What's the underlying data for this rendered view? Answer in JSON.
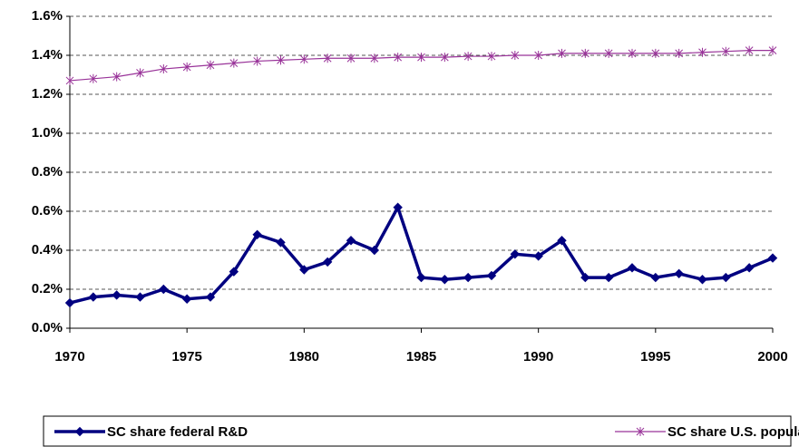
{
  "chart_data": {
    "type": "line",
    "x": [
      1970,
      1971,
      1972,
      1973,
      1974,
      1975,
      1976,
      1977,
      1978,
      1979,
      1980,
      1981,
      1982,
      1983,
      1984,
      1985,
      1986,
      1987,
      1988,
      1989,
      1990,
      1991,
      1992,
      1993,
      1994,
      1995,
      1996,
      1997,
      1998,
      1999,
      2000
    ],
    "series": [
      {
        "name": "SC share federal R&D",
        "color": "#000080",
        "marker": "diamond",
        "values": [
          0.13,
          0.16,
          0.17,
          0.16,
          0.2,
          0.15,
          0.16,
          0.29,
          0.48,
          0.44,
          0.3,
          0.34,
          0.45,
          0.4,
          0.62,
          0.26,
          0.25,
          0.26,
          0.27,
          0.38,
          0.37,
          0.45,
          0.26,
          0.26,
          0.31,
          0.26,
          0.28,
          0.25,
          0.26,
          0.31,
          0.36
        ]
      },
      {
        "name": "SC share U.S. population",
        "color": "#993399",
        "marker": "asterisk",
        "values": [
          1.27,
          1.28,
          1.29,
          1.31,
          1.33,
          1.34,
          1.35,
          1.36,
          1.37,
          1.375,
          1.38,
          1.385,
          1.385,
          1.385,
          1.39,
          1.39,
          1.39,
          1.395,
          1.395,
          1.4,
          1.4,
          1.41,
          1.41,
          1.41,
          1.41,
          1.41,
          1.41,
          1.415,
          1.42,
          1.425,
          1.425
        ]
      }
    ],
    "xlim": [
      1970,
      2000
    ],
    "xticks": [
      1970,
      1975,
      1980,
      1985,
      1990,
      1995,
      2000
    ],
    "ylim": [
      0,
      1.6
    ],
    "yticks": [
      {
        "value": 0,
        "label": "0.0%"
      },
      {
        "value": 0.2,
        "label": "0.2%"
      },
      {
        "value": 0.4,
        "label": "0.4%"
      },
      {
        "value": 0.6,
        "label": "0.6%"
      },
      {
        "value": 0.8,
        "label": "0.8%"
      },
      {
        "value": 1.0,
        "label": "1.0%"
      },
      {
        "value": 1.2,
        "label": "1.2%"
      },
      {
        "value": 1.4,
        "label": "1.4%"
      },
      {
        "value": 1.6,
        "label": "1.6%"
      }
    ],
    "grid": true,
    "legend": "bottom"
  }
}
